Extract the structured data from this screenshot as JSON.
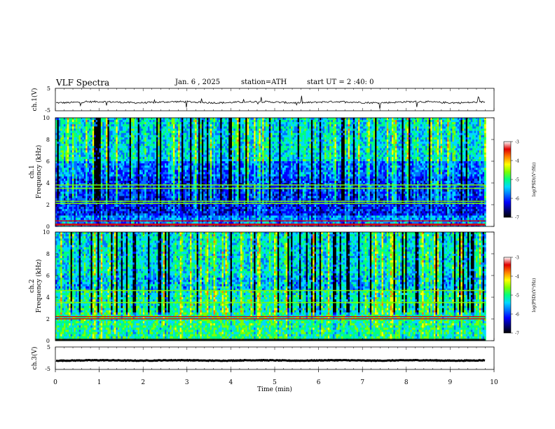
{
  "header": {
    "title": "VLF Spectra",
    "date": "Jan. 6 , 2025",
    "station": "station=ATH",
    "start_ut": "start UT = 2 :40: 0"
  },
  "chart_data": [
    {
      "type": "line",
      "panel": "ch1-waveform",
      "ylabel": "ch.1(V)",
      "ylim": [
        -5,
        5
      ],
      "y_ticks": [
        "5",
        "-5"
      ],
      "baseline": -1.2,
      "noise_amplitude": 0.4,
      "xlim": [
        0,
        10
      ],
      "x_end": 9.8
    },
    {
      "type": "heatmap",
      "panel": "ch1-spectrogram",
      "ylabel": "ch.1 Frequency (kHz)",
      "ylim": [
        0,
        10
      ],
      "y_ticks": [
        "0",
        "2",
        "4",
        "6",
        "8",
        "10"
      ],
      "xlim": [
        0,
        10
      ],
      "x_end": 9.8,
      "colorbar": {
        "label": "log(PSD)(V²/Hz)",
        "range": [
          -7,
          -3
        ],
        "ticks": [
          "-3",
          "-4",
          "-5",
          "-6",
          "-7"
        ]
      },
      "bands_khz": [
        2.1,
        2.3,
        3.5,
        3.8,
        0.5,
        0.2
      ]
    },
    {
      "type": "heatmap",
      "panel": "ch2-spectrogram",
      "ylabel": "ch.2 Frequency (kHz)",
      "ylim": [
        0,
        10
      ],
      "y_ticks": [
        "0",
        "2",
        "4",
        "6",
        "8",
        "10"
      ],
      "xlim": [
        0,
        10
      ],
      "x_end": 9.8,
      "colorbar": {
        "label": "log(PSD)(V²/Hz)",
        "range": [
          -7,
          -3
        ],
        "ticks": [
          "-3",
          "-4",
          "-5",
          "-6",
          "-7"
        ]
      },
      "bands_khz": [
        2.0,
        2.2,
        3.5,
        4.6,
        0.1
      ]
    },
    {
      "type": "line",
      "panel": "ch3-waveform",
      "ylabel": "ch.3(V)",
      "ylim": [
        -5,
        5
      ],
      "y_ticks": [
        "5",
        "-5"
      ],
      "baseline": -1.0,
      "noise_amplitude": 0.15,
      "xlim": [
        0,
        10
      ],
      "x_end": 9.8
    }
  ],
  "x_axis": {
    "label": "Time (min)",
    "ticks": [
      "0",
      "1",
      "2",
      "3",
      "4",
      "5",
      "6",
      "7",
      "8",
      "9",
      "10"
    ]
  },
  "colors": {
    "colormap": [
      "#000000",
      "#00007a",
      "#0000ff",
      "#0070ff",
      "#00d8ff",
      "#00ff80",
      "#7cff00",
      "#ffff00",
      "#ff8000",
      "#e00000",
      "#ffffff"
    ]
  }
}
